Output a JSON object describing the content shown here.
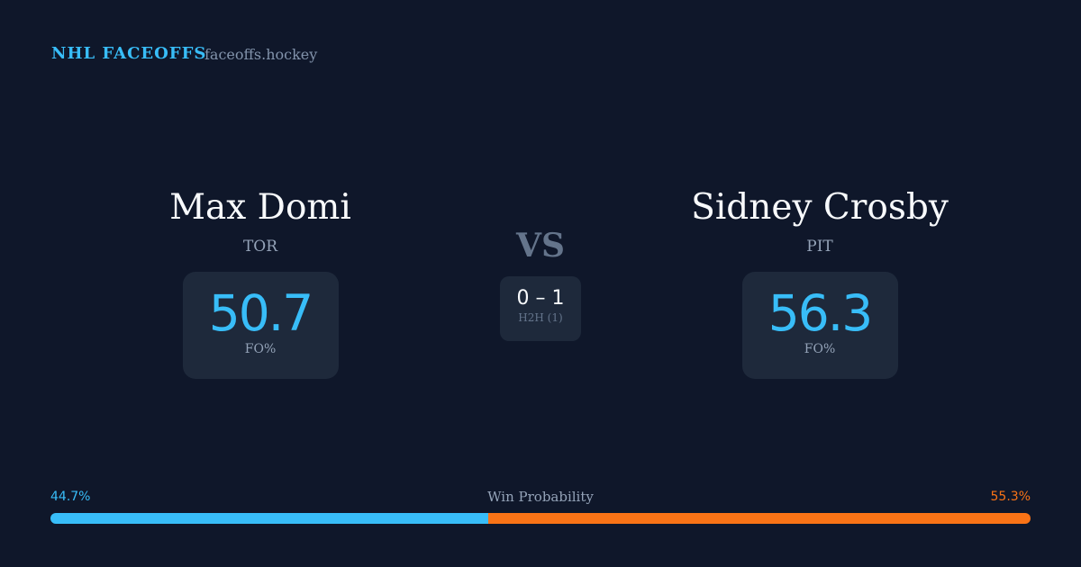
{
  "brand": {
    "title": "NHL FACEOFFS",
    "site": "faceoffs.hockey"
  },
  "players": [
    {
      "name": "Max Domi",
      "team": "TOR",
      "fo_pct": "50.7",
      "fo_label": "FO%"
    },
    {
      "name": "Sidney Crosby",
      "team": "PIT",
      "fo_pct": "56.3",
      "fo_label": "FO%"
    }
  ],
  "vs": "VS",
  "h2h": {
    "score": "0 – 1",
    "label": "H2H (1)"
  },
  "win_probability": {
    "label": "Win Probability",
    "left_text": "44.7%",
    "right_text": "55.3%",
    "left": 44.7,
    "right": 55.3,
    "left_color": "#38bdf8",
    "right_color": "#f97316"
  }
}
